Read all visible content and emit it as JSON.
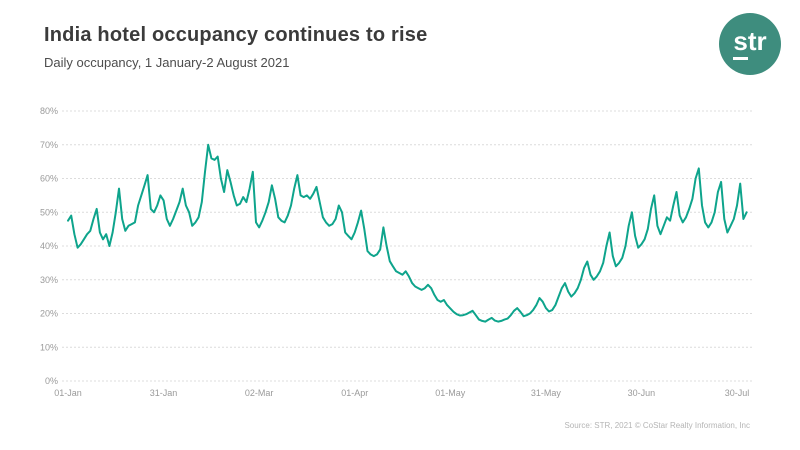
{
  "header": {
    "title": "India hotel occupancy continues to rise",
    "subtitle": "Daily occupancy, 1 January-2 August 2021"
  },
  "logo": {
    "text": "str",
    "text_s": "s",
    "text_tr": "tr",
    "bg_color": "#3e8d7e",
    "text_color": "#ffffff"
  },
  "footer": {
    "source": "Source: STR, 2021 © CoStar Realty Information, Inc"
  },
  "chart_data": {
    "type": "line",
    "title": "India hotel occupancy continues to rise",
    "subtitle": "Daily occupancy, 1 January-2 August 2021",
    "series_name": "Daily occupancy %",
    "frequency": "daily",
    "start_label": "01-Jan",
    "end_label": "02-Aug",
    "line_color": "#0ea48c",
    "grid": true,
    "grid_color": "#dcdcdc",
    "axis_label_color": "#9a9a9a",
    "ylim": [
      0,
      80
    ],
    "y_tick_values": [
      0,
      10,
      20,
      30,
      40,
      50,
      60,
      70,
      80
    ],
    "y_tick_labels": [
      "0%",
      "10%",
      "20%",
      "30%",
      "40%",
      "50%",
      "60%",
      "70%",
      "80%"
    ],
    "x_ticks": [
      {
        "day": 0,
        "label": "01-Jan"
      },
      {
        "day": 30,
        "label": "31-Jan"
      },
      {
        "day": 60,
        "label": "02-Mar"
      },
      {
        "day": 90,
        "label": "01-Apr"
      },
      {
        "day": 120,
        "label": "01-May"
      },
      {
        "day": 150,
        "label": "31-May"
      },
      {
        "day": 180,
        "label": "30-Jun"
      },
      {
        "day": 210,
        "label": "30-Jul"
      }
    ],
    "total_days": 214,
    "values": [
      47.5,
      49,
      43.5,
      39.5,
      40.5,
      42,
      43.5,
      44.5,
      48,
      51,
      44,
      42,
      43.5,
      40,
      44,
      50,
      57,
      48,
      44.5,
      46,
      46.5,
      47,
      52,
      55,
      58,
      61,
      51,
      50,
      52,
      55,
      53.5,
      48,
      46,
      48,
      50.5,
      53,
      57,
      52,
      50,
      46,
      47,
      48.5,
      53,
      62,
      70,
      66,
      65.5,
      66.5,
      60,
      56,
      62.5,
      59,
      55,
      52,
      52.5,
      54.5,
      53,
      57,
      62,
      47,
      45.5,
      47.5,
      50,
      53,
      58,
      54,
      48.5,
      47.5,
      47,
      49,
      52,
      57,
      61,
      55,
      54.5,
      55,
      54,
      55.5,
      57.5,
      53,
      48.5,
      47,
      46,
      46.5,
      48,
      52,
      50,
      44,
      43,
      42,
      44,
      47,
      50.5,
      45,
      38.5,
      37.5,
      37,
      37.5,
      39,
      45.5,
      40,
      35.5,
      34,
      32.5,
      32,
      31.5,
      32.5,
      31,
      29,
      28,
      27.5,
      27,
      27.5,
      28.5,
      27.5,
      25.5,
      24,
      23.5,
      24,
      22.5,
      21.5,
      20.5,
      19.8,
      19.4,
      19.5,
      19.8,
      20.3,
      20.8,
      19.5,
      18.2,
      17.8,
      17.6,
      18.2,
      18.7,
      17.9,
      17.6,
      17.8,
      18.2,
      18.5,
      19.5,
      20.8,
      21.6,
      20.5,
      19.2,
      19.5,
      20,
      21,
      22.5,
      24.6,
      23.5,
      21.6,
      20.6,
      21,
      22.5,
      25,
      27.5,
      29,
      26.5,
      25,
      26,
      27.5,
      30,
      33.5,
      35.4,
      31.5,
      30,
      31,
      32.5,
      35,
      40,
      44,
      37,
      34,
      35,
      36.5,
      40,
      46,
      50,
      43,
      39.5,
      40.5,
      42,
      45,
      51,
      55,
      46,
      43.5,
      46,
      48.5,
      47.5,
      52,
      56,
      49,
      47,
      48.5,
      51,
      54,
      60,
      63,
      52,
      47,
      45.5,
      47,
      50,
      56,
      59,
      48,
      44,
      46,
      48,
      52,
      58.5,
      48,
      50
    ]
  }
}
